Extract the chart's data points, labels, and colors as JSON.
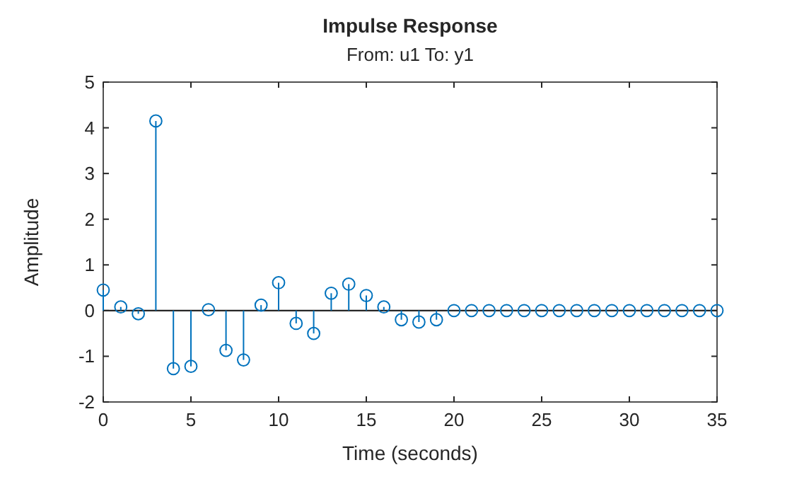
{
  "chart_data": {
    "type": "lollipop",
    "title": "Impulse Response",
    "subtitle": "From: u1  To: y1",
    "xlabel": "Time (seconds)",
    "ylabel": "Amplitude",
    "x": [
      0,
      1,
      2,
      3,
      4,
      5,
      6,
      7,
      8,
      9,
      10,
      11,
      12,
      13,
      14,
      15,
      16,
      17,
      18,
      19,
      20,
      21,
      22,
      23,
      24,
      25,
      26,
      27,
      28,
      29,
      30,
      31,
      32,
      33,
      34,
      35
    ],
    "series": [
      {
        "color": "#0072bd",
        "values": [
          0.45,
          0.08,
          -0.07,
          4.15,
          -1.27,
          -1.22,
          0.02,
          -0.87,
          -1.08,
          0.12,
          0.61,
          -0.28,
          -0.5,
          0.38,
          0.58,
          0.33,
          0.08,
          -0.2,
          -0.25,
          -0.2,
          0,
          0,
          0,
          0,
          0,
          0,
          0,
          0,
          0,
          0,
          0,
          0,
          0,
          0,
          0,
          0
        ]
      }
    ],
    "xlim": [
      0,
      35
    ],
    "xticks": [
      0,
      5,
      10,
      15,
      20,
      25,
      30,
      35
    ],
    "ylim": [
      -2,
      5
    ],
    "yticks": [
      -2,
      -1,
      0,
      1,
      2,
      3,
      4,
      5
    ],
    "marker": "circle"
  }
}
